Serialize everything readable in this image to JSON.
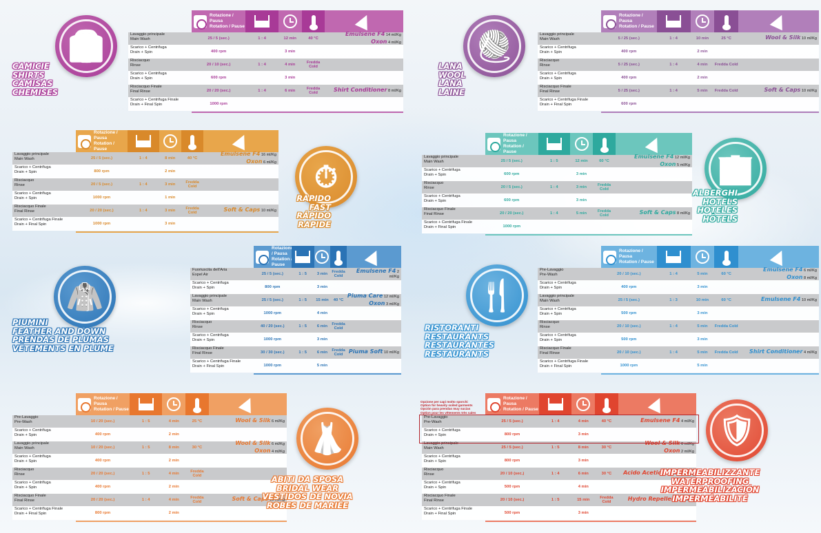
{
  "header_labels": {
    "rotation": "Rotazione / Pausa",
    "rotation_en": "Rotation / Pause"
  },
  "programs": [
    {
      "id": "shirts",
      "color": "#a83a97",
      "accent": "#c068b0",
      "names": [
        "CAMICIE",
        "SHIRTS",
        "CAMISAS",
        "CHEMISES"
      ],
      "icon": "shirt-icon",
      "rows": [
        {
          "it": "Lavaggio principale",
          "en": "Main Wash",
          "rot": "25 / 5 (sec.)",
          "ratio": "1 : 4",
          "time": "12 min",
          "temp": "40 °C",
          "chem": [
            {
              "p": "Emulsene F4",
              "q": "14 ml/Kg"
            },
            {
              "p": "Oxon",
              "q": "4 ml/Kg"
            }
          ]
        },
        {
          "it": "Scarico + Centrifuga",
          "en": "Drain + Spin",
          "rot": "400 rpm",
          "ratio": "",
          "time": "3 min",
          "temp": "",
          "chem": []
        },
        {
          "it": "Risciacquo",
          "en": "Rinse",
          "rot": "20 / 10 (sec.)",
          "ratio": "1 : 4",
          "time": "4 min",
          "temp": "Fredda Cold",
          "chem": []
        },
        {
          "it": "Scarico + Centrifuga",
          "en": "Drain + Spin",
          "rot": "600 rpm",
          "ratio": "",
          "time": "3 min",
          "temp": "",
          "chem": []
        },
        {
          "it": "Risciacquo Finale",
          "en": "Final Rinse",
          "rot": "20 / 20 (sec.)",
          "ratio": "1 : 4",
          "time": "6 min",
          "temp": "Fredda Cold",
          "chem": [
            {
              "p": "Shirt Conditioner",
              "q": "8 ml/Kg"
            }
          ]
        },
        {
          "it": "Scarico + Centrifuga Finale",
          "en": "Drain + Final Spin",
          "rot": "1000 rpm",
          "ratio": "",
          "time": "",
          "temp": "",
          "chem": []
        }
      ]
    },
    {
      "id": "wool",
      "color": "#8a4f95",
      "accent": "#b17fba",
      "names": [
        "LANA",
        "WOOL",
        "LANA",
        "LAINE"
      ],
      "icon": "yarn-ball-icon",
      "rows": [
        {
          "it": "Lavaggio principale",
          "en": "Main Wash",
          "rot": "5 / 25 (sec.)",
          "ratio": "1 : 4",
          "time": "10 min",
          "temp": "25 °C",
          "chem": [
            {
              "p": "Wool & Silk",
              "q": "10 ml/Kg"
            }
          ]
        },
        {
          "it": "Scarico + Centrifuga",
          "en": "Drain + Spin",
          "rot": "400 rpm",
          "ratio": "",
          "time": "2 min",
          "temp": "",
          "chem": []
        },
        {
          "it": "Risciacquo",
          "en": "Rinse",
          "rot": "5 / 25 (sec.)",
          "ratio": "1 : 4",
          "time": "4 min",
          "temp": "Fredda Cold",
          "chem": []
        },
        {
          "it": "Scarico + Centrifuga",
          "en": "Drain + Spin",
          "rot": "400 rpm",
          "ratio": "",
          "time": "2 min",
          "temp": "",
          "chem": []
        },
        {
          "it": "Risciacquo Finale",
          "en": "Final Rinse",
          "rot": "5 / 25 (sec.)",
          "ratio": "1 : 4",
          "time": "5 min",
          "temp": "Fredda Cold",
          "chem": [
            {
              "p": "Soft & Caps",
              "q": "10 ml/Kg"
            }
          ]
        },
        {
          "it": "Scarico + Centrifuga Finale",
          "en": "Drain + Final Spin",
          "rot": "600 rpm",
          "ratio": "",
          "time": "",
          "temp": "",
          "chem": []
        }
      ]
    },
    {
      "id": "fast",
      "color": "#d9892a",
      "accent": "#e8a64b",
      "names": [
        "RAPIDO",
        "FAST",
        "RÁPIDO",
        "RAPIDE"
      ],
      "icon": "stopwatch-icon",
      "rows": [
        {
          "it": "Lavaggio principale",
          "en": "Main Wash",
          "rot": "25 / 5 (sec.)",
          "ratio": "1 : 4",
          "time": "8 min",
          "temp": "40 °C",
          "chem": [
            {
              "p": "Emulsene F4",
              "q": "16 ml/Kg"
            },
            {
              "p": "Oxon",
              "q": "6 ml/Kg"
            }
          ]
        },
        {
          "it": "Scarico + Centrifuga",
          "en": "Drain + Spin",
          "rot": "800 rpm",
          "ratio": "",
          "time": "2 min",
          "temp": "",
          "chem": []
        },
        {
          "it": "Risciacquo",
          "en": "Rinse",
          "rot": "20 / 5 (sec.)",
          "ratio": "1 : 4",
          "time": "3 min",
          "temp": "Fredda Cold",
          "chem": []
        },
        {
          "it": "Scarico + Centrifuga",
          "en": "Drain + Spin",
          "rot": "1000 rpm",
          "ratio": "",
          "time": "1 min",
          "temp": "",
          "chem": []
        },
        {
          "it": "Risciacquo Finale",
          "en": "Final Rinse",
          "rot": "20 / 20 (sec.)",
          "ratio": "1 : 4",
          "time": "3 min",
          "temp": "Fredda Cold",
          "chem": [
            {
              "p": "Soft & Caps",
              "q": "10 ml/Kg"
            }
          ]
        },
        {
          "it": "Scarico + Centrifuga Finale",
          "en": "Drain + Final Spin",
          "rot": "1000 rpm",
          "ratio": "",
          "time": "3 min",
          "temp": "",
          "chem": []
        }
      ]
    },
    {
      "id": "hotels",
      "color": "#2ea99e",
      "accent": "#6cc6bd",
      "names": [
        "ALBERGHI",
        "HOTELS",
        "HOTELES",
        "HÔTELS"
      ],
      "icon": "building-icon",
      "rows": [
        {
          "it": "Lavaggio principale",
          "en": "Main Wash",
          "rot": "25 / 5 (sec.)",
          "ratio": "1 : 5",
          "time": "12 min",
          "temp": "60 °C",
          "chem": [
            {
              "p": "Emulsene F4",
              "q": "12 ml/Kg"
            },
            {
              "p": "Oxon",
              "q": "5 ml/Kg"
            }
          ]
        },
        {
          "it": "Scarico + Centrifuga",
          "en": "Drain + Spin",
          "rot": "600 rpm",
          "ratio": "",
          "time": "3 min",
          "temp": "",
          "chem": []
        },
        {
          "it": "Risciacquo",
          "en": "Rinse",
          "rot": "20 / 5 (sec.)",
          "ratio": "1 : 4",
          "time": "3 min",
          "temp": "Fredda Cold",
          "chem": []
        },
        {
          "it": "Scarico + Centrifuga",
          "en": "Drain + Spin",
          "rot": "600 rpm",
          "ratio": "",
          "time": "3 min",
          "temp": "",
          "chem": []
        },
        {
          "it": "Risciacquo Finale",
          "en": "Final Rinse",
          "rot": "20 / 20 (sec.)",
          "ratio": "1 : 4",
          "time": "5 min",
          "temp": "Fredda Cold",
          "chem": [
            {
              "p": "Soft & Caps",
              "q": "8 ml/Kg"
            }
          ]
        },
        {
          "it": "Scarico + Centrifuga Finale",
          "en": "Drain + Final Spin",
          "rot": "1000 rpm",
          "ratio": "",
          "time": "",
          "temp": "",
          "chem": []
        }
      ]
    },
    {
      "id": "down",
      "color": "#2a73b5",
      "accent": "#5b9ad0",
      "names": [
        "PIUMINI",
        "FEATHER and DOWN",
        "PRENDAS de PLUMAS",
        "VÊTEMENTS en PLUME"
      ],
      "icon": "jacket-icon",
      "rows": [
        {
          "it": "Fuoriuscita dell'Aria",
          "en": "Expel Air",
          "rot": "25 / 5 (sec.)",
          "ratio": "1 : 5",
          "time": "3 min",
          "temp": "Fredda Cold",
          "chem": [
            {
              "p": "Emulsene F4",
              "q": "2 ml/Kg"
            }
          ]
        },
        {
          "it": "Scarico + Centrifuga",
          "en": "Drain + Spin",
          "rot": "800 rpm",
          "ratio": "",
          "time": "3 min",
          "temp": "",
          "chem": []
        },
        {
          "it": "Lavaggio principale",
          "en": "Main Wash",
          "rot": "25 / 5 (sec.)",
          "ratio": "1 : 5",
          "time": "15 min",
          "temp": "40 °C",
          "chem": [
            {
              "p": "Piuma Care",
              "q": "12 ml/Kg"
            },
            {
              "p": "Oxon",
              "q": "3 ml/Kg"
            }
          ]
        },
        {
          "it": "Scarico + Centrifuga",
          "en": "Drain + Spin",
          "rot": "1000 rpm",
          "ratio": "",
          "time": "4 min",
          "temp": "",
          "chem": []
        },
        {
          "it": "Risciacquo",
          "en": "Rinse",
          "rot": "40 / 20 (sec.)",
          "ratio": "1 : 5",
          "time": "6 min",
          "temp": "Fredda Cold",
          "chem": []
        },
        {
          "it": "Scarico + Centrifuga",
          "en": "Drain + Spin",
          "rot": "1000 rpm",
          "ratio": "",
          "time": "3 min",
          "temp": "",
          "chem": []
        },
        {
          "it": "Risciacquo Finale",
          "en": "Final Rinse",
          "rot": "30 / 30 (sec.)",
          "ratio": "1 : 5",
          "time": "6 min",
          "temp": "Fredda Cold",
          "chem": [
            {
              "p": "Piuma Soft",
              "q": "10 ml/Kg"
            }
          ]
        },
        {
          "it": "Scarico + Centrifuga Finale",
          "en": "Drain + Final Spin",
          "rot": "1000 rpm",
          "ratio": "",
          "time": "5 min",
          "temp": "",
          "chem": []
        }
      ]
    },
    {
      "id": "restaurants",
      "color": "#2f8fcf",
      "accent": "#6db3e0",
      "names": [
        "RISTORANTI",
        "RESTAURANTS",
        "RESTAURANTES",
        "RESTAURANTS"
      ],
      "icon": "cutlery-icon",
      "rows": [
        {
          "it": "Pre-Lavaggio",
          "en": "Pre-Wash",
          "rot": "20 / 10 (sec.)",
          "ratio": "1 : 4",
          "time": "5 min",
          "temp": "60 °C",
          "chem": [
            {
              "p": "Emulsene F4",
              "q": "6 ml/Kg"
            },
            {
              "p": "Oxon",
              "q": "8 ml/Kg"
            }
          ]
        },
        {
          "it": "Scarico + Centrifuga",
          "en": "Drain + Spin",
          "rot": "400 rpm",
          "ratio": "",
          "time": "3 min",
          "temp": "",
          "chem": []
        },
        {
          "it": "Lavaggio principale",
          "en": "Main Wash",
          "rot": "25 / 5 (sec.)",
          "ratio": "1 : 3",
          "time": "10 min",
          "temp": "60 °C",
          "chem": [
            {
              "p": "Emulsene F4",
              "q": "10 ml/Kg"
            }
          ]
        },
        {
          "it": "Scarico + Centrifuga",
          "en": "Drain + Spin",
          "rot": "500 rpm",
          "ratio": "",
          "time": "3 min",
          "temp": "",
          "chem": []
        },
        {
          "it": "Risciacquo",
          "en": "Rinse",
          "rot": "20 / 10 (sec.)",
          "ratio": "1 : 4",
          "time": "5 min",
          "temp": "Fredda Cold",
          "chem": []
        },
        {
          "it": "Scarico + Centrifuga",
          "en": "Drain + Spin",
          "rot": "500 rpm",
          "ratio": "",
          "time": "3 min",
          "temp": "",
          "chem": []
        },
        {
          "it": "Risciacquo Finale",
          "en": "Final Rinse",
          "rot": "20 / 10 (sec.)",
          "ratio": "1 : 4",
          "time": "5 min",
          "temp": "Fredda Cold",
          "chem": [
            {
              "p": "Shirt Conditioner",
              "q": "4 ml/Kg"
            }
          ]
        },
        {
          "it": "Scarico + Centrifuga Finale",
          "en": "Drain + Final Spin",
          "rot": "1000 rpm",
          "ratio": "",
          "time": "5 min",
          "temp": "",
          "chem": []
        }
      ]
    },
    {
      "id": "bridal",
      "color": "#e8772e",
      "accent": "#f0a063",
      "names": [
        "ABITI da SPOSA",
        "BRIDAL WEAR",
        "VESTIDOS de NOVIA",
        "ROBES de MARIÉE"
      ],
      "icon": "dress-icon",
      "rows": [
        {
          "it": "Pre-Lavaggio",
          "en": "Pre-Wash",
          "rot": "10 / 20 (sec.)",
          "ratio": "1 : 5",
          "time": "4 min",
          "temp": "25 °C",
          "chem": [
            {
              "p": "Wool & Silk",
              "q": "6 ml/Kg"
            }
          ]
        },
        {
          "it": "Scarico + Centrifuga",
          "en": "Drain + Spin",
          "rot": "400 rpm",
          "ratio": "",
          "time": "2 min",
          "temp": "",
          "chem": []
        },
        {
          "it": "Lavaggio principale",
          "en": "Main Wash",
          "rot": "10 / 20 (sec.)",
          "ratio": "1 : 5",
          "time": "8 min",
          "temp": "30 °C",
          "chem": [
            {
              "p": "Wool & Silk",
              "q": "6 ml/Kg"
            },
            {
              "p": "Oxon",
              "q": "4 ml/Kg"
            }
          ]
        },
        {
          "it": "Scarico + Centrifuga",
          "en": "Drain + Spin",
          "rot": "400 rpm",
          "ratio": "",
          "time": "2 min",
          "temp": "",
          "chem": []
        },
        {
          "it": "Risciacquo",
          "en": "Rinse",
          "rot": "20 / 20 (sec.)",
          "ratio": "1 : 5",
          "time": "4 min",
          "temp": "Fredda Cold",
          "chem": []
        },
        {
          "it": "Scarico + Centrifuga",
          "en": "Drain + Spin",
          "rot": "400 rpm",
          "ratio": "",
          "time": "2 min",
          "temp": "",
          "chem": []
        },
        {
          "it": "Risciacquo Finale",
          "en": "Final Rinse",
          "rot": "20 / 20 (sec.)",
          "ratio": "1 : 4",
          "time": "4 min",
          "temp": "Fredda Cold",
          "chem": [
            {
              "p": "Soft & Caps",
              "q": "10 ml/Kg"
            }
          ]
        },
        {
          "it": "Scarico + Centrifuga Finale",
          "en": "Drain + Final Spin",
          "rot": "800 rpm",
          "ratio": "",
          "time": "2 min",
          "temp": "",
          "chem": []
        }
      ]
    },
    {
      "id": "waterproofing",
      "color": "#e0452f",
      "accent": "#ec7a63",
      "names": [
        "IMPERMEABILIZZANTE",
        "WATERPROOFING",
        "IMPERMEABILIZACIÓN",
        "IMPERMÉABILITÉ"
      ],
      "icon": "shield-drop-icon",
      "notes": [
        "Opzione per capi molto sporchi",
        "Option for heavily soiled garments",
        "Opción para prendas muy sucias",
        "Option pour les vêtements très sales"
      ],
      "rows": [
        {
          "it": "Pre-Lavaggio",
          "en": "Pre-Wash",
          "rot": "25 / 5 (sec.)",
          "ratio": "1 : 4",
          "time": "4 min",
          "temp": "40 °C",
          "chem": [
            {
              "p": "Emulsene F4",
              "q": "4 ml/Kg"
            }
          ]
        },
        {
          "it": "Scarico + Centrifuga",
          "en": "Drain + Spin",
          "rot": "800 rpm",
          "ratio": "",
          "time": "3 min",
          "temp": "",
          "chem": []
        },
        {
          "it": "Lavaggio principale",
          "en": "Main Wash",
          "rot": "25 / 5 (sec.)",
          "ratio": "1 : 5",
          "time": "8 min",
          "temp": "30 °C",
          "chem": [
            {
              "p": "Wool & Silk",
              "q": "6 ml/Kg"
            },
            {
              "p": "Oxon",
              "q": "2 ml/Kg"
            }
          ]
        },
        {
          "it": "Scarico + Centrifuga",
          "en": "Drain + Spin",
          "rot": "800 rpm",
          "ratio": "",
          "time": "3 min",
          "temp": "",
          "chem": []
        },
        {
          "it": "Risciacquo",
          "en": "Rinse",
          "rot": "20 / 10 (sec.)",
          "ratio": "1 : 4",
          "time": "6 min",
          "temp": "30 °C",
          "chem": [
            {
              "p": "Acido Acetico 24%",
              "q": "2 ml/Kg"
            }
          ]
        },
        {
          "it": "Scarico + Centrifuga",
          "en": "Drain + Spin",
          "rot": "500 rpm",
          "ratio": "",
          "time": "4 min",
          "temp": "",
          "chem": []
        },
        {
          "it": "Risciacquo Finale",
          "en": "Final Rinse",
          "rot": "20 / 10 (sec.)",
          "ratio": "1 : 5",
          "time": "15 min",
          "temp": "Fredda Cold",
          "chem": [
            {
              "p": "Hydro Repellent",
              "q": "12 ml/Kg"
            }
          ]
        },
        {
          "it": "Scarico + Centrifuga Finale",
          "en": "Drain + Final Spin",
          "rot": "500 rpm",
          "ratio": "",
          "time": "3 min",
          "temp": "",
          "chem": []
        }
      ]
    }
  ]
}
